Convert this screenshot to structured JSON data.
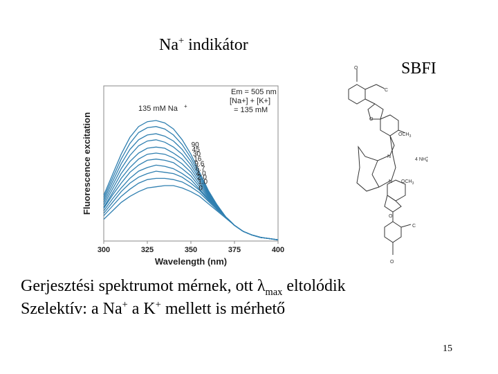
{
  "slide": {
    "title_main": "Na",
    "title_sup": "+",
    "title_rest": " indikátor",
    "compound": "SBFI",
    "line1_a": "Gerjesztési spektrumot mérnek, ott ",
    "line1_lambda": "λ",
    "line1_sub": "max",
    "line1_b": " eltolódik",
    "line2_a": "Szelektív: a Na",
    "line2_sup1": "+",
    "line2_b": " a K",
    "line2_sup2": "+",
    "line2_c": " mellett is mérhető",
    "page_number": "15"
  },
  "chart_data": {
    "type": "line",
    "xlabel": "Wavelength (nm)",
    "ylabel": "Fluorescence excitation",
    "xlim": [
      300,
      400
    ],
    "x_ticks": [
      "300",
      "325",
      "350",
      "375",
      "400"
    ],
    "legend_box": [
      "Em = 505 nm",
      "[Na+] + [K+]",
      "= 135 mM"
    ],
    "series_label_header": "135 mM Na",
    "x": [
      300,
      305,
      310,
      315,
      320,
      325,
      330,
      335,
      340,
      345,
      350,
      355,
      360,
      365,
      370,
      375,
      380,
      385,
      390,
      395,
      400
    ],
    "series": [
      {
        "label": "135",
        "values": [
          0.38,
          0.55,
          0.72,
          0.86,
          0.95,
          0.99,
          1.0,
          0.98,
          0.93,
          0.84,
          0.72,
          0.57,
          0.42,
          0.3,
          0.2,
          0.13,
          0.08,
          0.05,
          0.03,
          0.02,
          0.01
        ]
      },
      {
        "label": "90",
        "values": [
          0.36,
          0.52,
          0.68,
          0.81,
          0.9,
          0.94,
          0.95,
          0.93,
          0.88,
          0.8,
          0.69,
          0.55,
          0.41,
          0.3,
          0.2,
          0.13,
          0.08,
          0.05,
          0.03,
          0.02,
          0.01
        ]
      },
      {
        "label": "45",
        "values": [
          0.34,
          0.49,
          0.64,
          0.76,
          0.84,
          0.88,
          0.89,
          0.87,
          0.83,
          0.76,
          0.66,
          0.53,
          0.4,
          0.29,
          0.2,
          0.13,
          0.08,
          0.05,
          0.03,
          0.02,
          0.01
        ]
      },
      {
        "label": "30",
        "values": [
          0.32,
          0.46,
          0.6,
          0.71,
          0.79,
          0.83,
          0.84,
          0.82,
          0.78,
          0.72,
          0.63,
          0.51,
          0.39,
          0.29,
          0.2,
          0.13,
          0.08,
          0.05,
          0.03,
          0.02,
          0.01
        ]
      },
      {
        "label": "16",
        "values": [
          0.3,
          0.43,
          0.56,
          0.66,
          0.73,
          0.77,
          0.78,
          0.77,
          0.73,
          0.68,
          0.6,
          0.49,
          0.38,
          0.28,
          0.2,
          0.13,
          0.08,
          0.05,
          0.03,
          0.02,
          0.01
        ]
      },
      {
        "label": "9.6",
        "values": [
          0.28,
          0.4,
          0.52,
          0.61,
          0.68,
          0.72,
          0.73,
          0.72,
          0.69,
          0.64,
          0.57,
          0.47,
          0.37,
          0.28,
          0.2,
          0.13,
          0.08,
          0.05,
          0.03,
          0.02,
          0.01
        ]
      },
      {
        "label": "6.7",
        "values": [
          0.27,
          0.38,
          0.48,
          0.57,
          0.63,
          0.67,
          0.68,
          0.67,
          0.65,
          0.6,
          0.54,
          0.45,
          0.36,
          0.27,
          0.2,
          0.13,
          0.08,
          0.05,
          0.03,
          0.02,
          0.01
        ]
      },
      {
        "label": "4.0",
        "values": [
          0.25,
          0.35,
          0.44,
          0.52,
          0.58,
          0.61,
          0.63,
          0.62,
          0.6,
          0.56,
          0.51,
          0.43,
          0.35,
          0.27,
          0.2,
          0.13,
          0.08,
          0.05,
          0.03,
          0.02,
          0.01
        ]
      },
      {
        "label": "2.0",
        "values": [
          0.23,
          0.32,
          0.41,
          0.48,
          0.53,
          0.56,
          0.58,
          0.57,
          0.56,
          0.53,
          0.48,
          0.42,
          0.34,
          0.27,
          0.2,
          0.13,
          0.08,
          0.05,
          0.03,
          0.02,
          0.01
        ]
      },
      {
        "label": "1.0",
        "values": [
          0.21,
          0.29,
          0.37,
          0.43,
          0.48,
          0.51,
          0.52,
          0.52,
          0.51,
          0.49,
          0.45,
          0.4,
          0.33,
          0.26,
          0.2,
          0.13,
          0.08,
          0.05,
          0.03,
          0.02,
          0.01
        ]
      },
      {
        "label": "0",
        "values": [
          0.18,
          0.25,
          0.32,
          0.37,
          0.41,
          0.44,
          0.45,
          0.46,
          0.46,
          0.44,
          0.41,
          0.37,
          0.31,
          0.25,
          0.19,
          0.13,
          0.08,
          0.05,
          0.03,
          0.02,
          0.01
        ]
      }
    ],
    "line_color": "#2f7fb0",
    "grid": false
  },
  "molecule": {
    "counterion": "4 NH",
    "counterion_sub": "4",
    "counterion_sup": "+",
    "methoxy": "OCH",
    "methoxy_sub": "3",
    "nitrogen": "N",
    "oxygen": "O",
    "carbon": "C"
  }
}
